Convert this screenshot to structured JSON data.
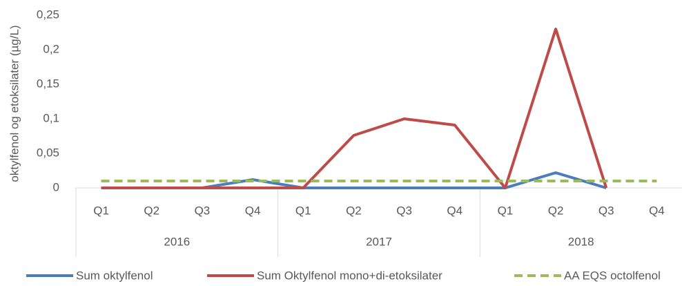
{
  "chart_data": {
    "type": "line",
    "y_label": "oktylfenol og etoksilater (µg/L)",
    "categories": [
      "Q1",
      "Q2",
      "Q3",
      "Q4",
      "Q1",
      "Q2",
      "Q3",
      "Q4",
      "Q1",
      "Q2",
      "Q3",
      "Q4"
    ],
    "groups": [
      "2016",
      "2017",
      "2018"
    ],
    "series": [
      {
        "name": "Sum oktylfenol",
        "color": "#4a7ebb",
        "dashed": false,
        "values": [
          0,
          0,
          0,
          0.012,
          0,
          0,
          0,
          0,
          0,
          0.022,
          0,
          null
        ]
      },
      {
        "name": "Sum Oktylfenol mono+di-etoksilater",
        "color": "#be4b48",
        "dashed": false,
        "values": [
          0,
          0,
          0,
          0,
          0,
          0.076,
          0.1,
          0.091,
          0,
          0.23,
          0,
          null
        ]
      },
      {
        "name": "AA EQS octolfenol",
        "color": "#9bbb59",
        "dashed": true,
        "values": [
          0.01,
          0.01,
          0.01,
          0.01,
          0.01,
          0.01,
          0.01,
          0.01,
          0.01,
          0.01,
          0.01,
          0.01
        ]
      }
    ],
    "ylim": [
      0,
      0.25
    ],
    "yticks": [
      0,
      {
        "value": 0.05,
        "label": "0,05"
      },
      {
        "value": 0.1,
        "label": "0,1"
      },
      {
        "value": 0.15,
        "label": "0,15"
      },
      {
        "value": 0.2,
        "label": "0,2"
      },
      {
        "value": 0.25,
        "label": "0,25"
      }
    ],
    "grid": false
  }
}
